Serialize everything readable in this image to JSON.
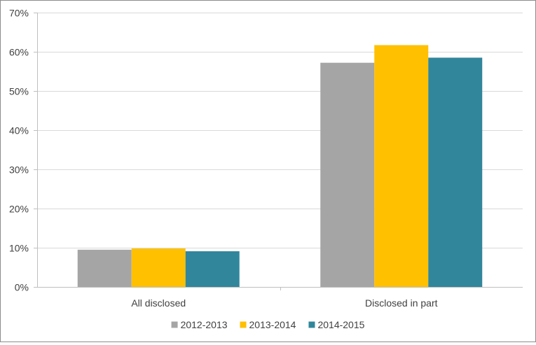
{
  "chart_data": {
    "type": "bar",
    "title": "",
    "xlabel": "",
    "ylabel": "",
    "categories": [
      "All disclosed",
      "Disclosed in part"
    ],
    "series": [
      {
        "name": "2012-2013",
        "color": "#a5a5a5",
        "values": [
          9.5,
          57.2
        ]
      },
      {
        "name": "2013-2014",
        "color": "#ffc000",
        "values": [
          9.8,
          61.7
        ]
      },
      {
        "name": "2014-2015",
        "color": "#31869b",
        "values": [
          9.1,
          58.5
        ]
      }
    ],
    "ylim": [
      0,
      70
    ],
    "yticks": [
      0,
      10,
      20,
      30,
      40,
      50,
      60,
      70
    ],
    "ytick_labels": [
      "0%",
      "10%",
      "20%",
      "30%",
      "40%",
      "50%",
      "60%",
      "70%"
    ],
    "grid": true,
    "legend_position": "bottom",
    "colors": {
      "grid": "#d9d9d9",
      "axis": "#bfbfbf",
      "text": "#404040"
    }
  }
}
